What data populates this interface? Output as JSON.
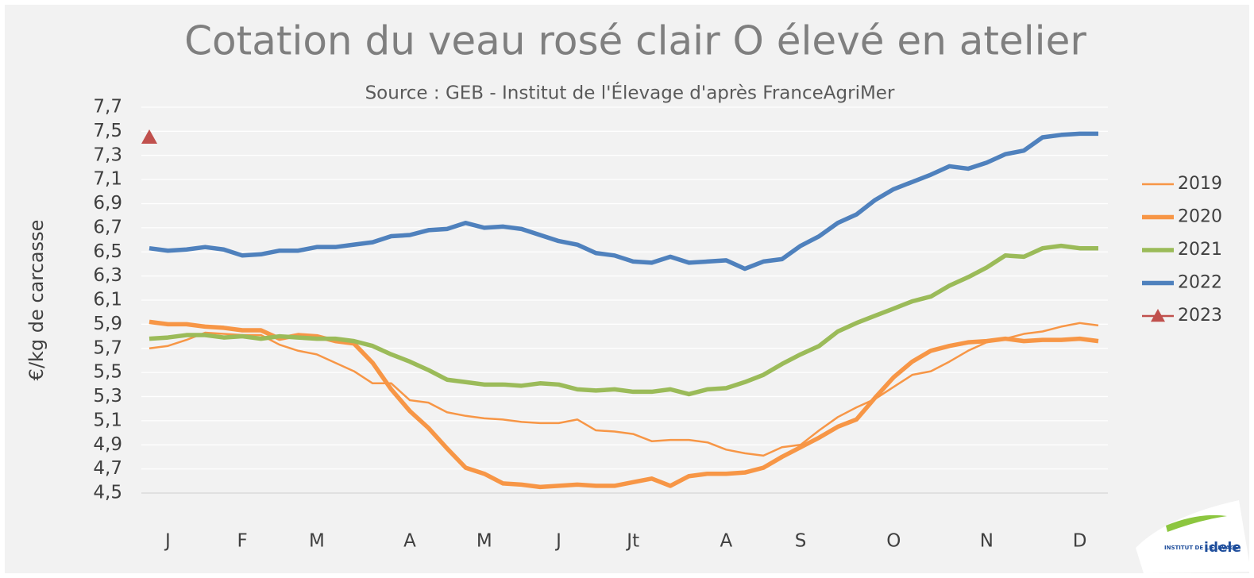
{
  "chart_data": {
    "type": "line",
    "title": "Cotation du veau rosé clair O élevé en atelier",
    "subtitle": "Source : GEB - Institut de l'Élevage d'après FranceAgriMer",
    "y_label": "€/kg de carcasse",
    "categories": [
      null,
      "J",
      null,
      null,
      null,
      "F",
      null,
      null,
      null,
      "M",
      null,
      null,
      null,
      null,
      "A",
      null,
      null,
      null,
      "M",
      null,
      null,
      null,
      "J",
      null,
      null,
      null,
      "Jt",
      null,
      null,
      null,
      null,
      "A",
      null,
      null,
      null,
      "S",
      null,
      null,
      null,
      null,
      "O",
      null,
      null,
      null,
      null,
      "N",
      null,
      null,
      null,
      null,
      "D",
      null
    ],
    "ylim": [
      4.5,
      7.7
    ],
    "yticks": [
      {
        "value": 4.5,
        "label": "4,5"
      },
      {
        "value": 4.7,
        "label": "4,7"
      },
      {
        "value": 4.9,
        "label": "4,9"
      },
      {
        "value": 5.1,
        "label": "5,1"
      },
      {
        "value": 5.3,
        "label": "5,3"
      },
      {
        "value": 5.5,
        "label": "5,5"
      },
      {
        "value": 5.7,
        "label": "5,7"
      },
      {
        "value": 5.9,
        "label": "5,9"
      },
      {
        "value": 6.1,
        "label": "6,1"
      },
      {
        "value": 6.3,
        "label": "6,3"
      },
      {
        "value": 6.5,
        "label": "6,5"
      },
      {
        "value": 6.7,
        "label": "6,7"
      },
      {
        "value": 6.9,
        "label": "6,9"
      },
      {
        "value": 7.1,
        "label": "7,1"
      },
      {
        "value": 7.3,
        "label": "7,3"
      },
      {
        "value": 7.5,
        "label": "7,5"
      },
      {
        "value": 7.7,
        "label": "7,7"
      }
    ],
    "grid": true,
    "legend": "right",
    "series": [
      {
        "name": "2019",
        "color": "#f79646",
        "width": 2.5,
        "values": [
          5.7,
          5.72,
          5.77,
          5.83,
          5.82,
          5.81,
          5.81,
          5.73,
          5.68,
          5.65,
          5.58,
          5.51,
          5.41,
          5.41,
          5.27,
          5.25,
          5.17,
          5.14,
          5.12,
          5.11,
          5.09,
          5.08,
          5.08,
          5.11,
          5.02,
          5.01,
          4.99,
          4.93,
          4.94,
          4.94,
          4.92,
          4.86,
          4.83,
          4.81,
          4.88,
          4.9,
          5.02,
          5.13,
          5.21,
          5.28,
          5.38,
          5.48,
          5.51,
          5.59,
          5.68,
          5.75,
          5.78,
          5.82,
          5.84,
          5.88,
          5.91,
          5.89
        ]
      },
      {
        "name": "2020",
        "color": "#f79646",
        "width": 5.5,
        "values": [
          5.92,
          5.9,
          5.9,
          5.88,
          5.87,
          5.85,
          5.85,
          5.78,
          5.81,
          5.8,
          5.76,
          5.74,
          5.58,
          5.36,
          5.18,
          5.04,
          4.87,
          4.71,
          4.66,
          4.58,
          4.57,
          4.55,
          4.56,
          4.57,
          4.56,
          4.56,
          4.59,
          4.62,
          4.56,
          4.64,
          4.66,
          4.66,
          4.67,
          4.71,
          4.8,
          4.88,
          4.96,
          5.05,
          5.11,
          5.29,
          5.46,
          5.59,
          5.68,
          5.72,
          5.75,
          5.76,
          5.78,
          5.76,
          5.77,
          5.77,
          5.78,
          5.76
        ]
      },
      {
        "name": "2021",
        "color": "#9bbb59",
        "width": 5.5,
        "values": [
          5.78,
          5.79,
          5.81,
          5.81,
          5.79,
          5.8,
          5.78,
          5.8,
          5.79,
          5.78,
          5.78,
          5.76,
          5.72,
          5.65,
          5.59,
          5.52,
          5.44,
          5.42,
          5.4,
          5.4,
          5.39,
          5.41,
          5.4,
          5.36,
          5.35,
          5.36,
          5.34,
          5.34,
          5.36,
          5.32,
          5.36,
          5.37,
          5.42,
          5.48,
          5.57,
          5.65,
          5.72,
          5.84,
          5.91,
          5.97,
          6.03,
          6.09,
          6.13,
          6.22,
          6.29,
          6.37,
          6.47,
          6.46,
          6.53,
          6.55,
          6.53,
          6.53
        ]
      },
      {
        "name": "2022",
        "color": "#4f81bd",
        "width": 5.5,
        "values": [
          6.53,
          6.51,
          6.52,
          6.54,
          6.52,
          6.47,
          6.48,
          6.51,
          6.51,
          6.54,
          6.54,
          6.56,
          6.58,
          6.63,
          6.64,
          6.68,
          6.69,
          6.74,
          6.7,
          6.71,
          6.69,
          6.64,
          6.59,
          6.56,
          6.49,
          6.47,
          6.42,
          6.41,
          6.46,
          6.41,
          6.42,
          6.43,
          6.36,
          6.42,
          6.44,
          6.55,
          6.63,
          6.74,
          6.81,
          6.93,
          7.02,
          7.08,
          7.14,
          7.21,
          7.19,
          7.24,
          7.31,
          7.34,
          7.45,
          7.47,
          7.48,
          7.48
        ]
      },
      {
        "name": "2023",
        "color": "#c0504d",
        "width": 2.5,
        "marker": "triangle",
        "values": [
          7.45,
          null,
          null,
          null,
          null,
          null,
          null,
          null,
          null,
          null,
          null,
          null,
          null,
          null,
          null,
          null,
          null,
          null,
          null,
          null,
          null,
          null,
          null,
          null,
          null,
          null,
          null,
          null,
          null,
          null,
          null,
          null,
          null,
          null,
          null,
          null,
          null,
          null,
          null,
          null,
          null,
          null,
          null,
          null,
          null,
          null,
          null,
          null,
          null,
          null,
          null,
          null
        ]
      }
    ],
    "logo_caption": "INSTITUT DE L'ÉLEVAGE",
    "logo_brand": "idele"
  }
}
